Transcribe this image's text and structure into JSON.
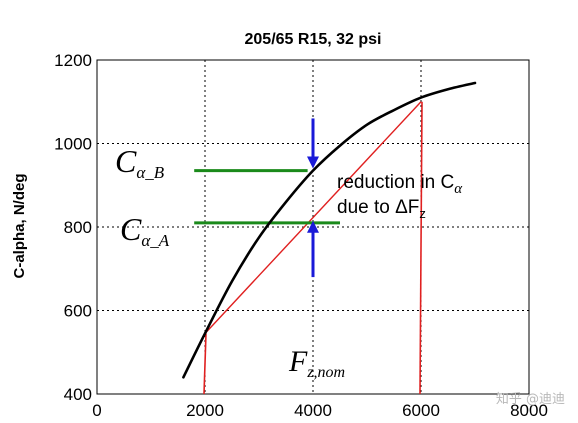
{
  "chart_data": {
    "type": "line",
    "title": "205/65 R15, 32 psi",
    "xlabel": "",
    "ylabel": "C-alpha, N/deg",
    "xlim": [
      0,
      8000
    ],
    "ylim": [
      400,
      1200
    ],
    "xticks": [
      0,
      2000,
      4000,
      6000,
      8000
    ],
    "yticks": [
      400,
      600,
      800,
      1000,
      1200
    ],
    "xtick_labels": [
      "0",
      "2000",
      "4000",
      "6000",
      "8000"
    ],
    "ytick_labels": [
      "400",
      "600",
      "800",
      "1000",
      "1200"
    ],
    "grid": true,
    "series": [
      {
        "color": "#000000",
        "x": [
          1600,
          2000,
          2500,
          3000,
          3500,
          4000,
          4500,
          5000,
          5500,
          6000,
          6500,
          7000
        ],
        "y": [
          440,
          545,
          670,
          775,
          860,
          935,
          995,
          1045,
          1080,
          1110,
          1130,
          1145
        ]
      }
    ],
    "chord": {
      "color": "#e02020",
      "x": [
        2000,
        6000
      ],
      "y": [
        545,
        1100
      ]
    },
    "verticals": {
      "color": "#e02020",
      "x": [
        2000,
        6000
      ]
    },
    "levels": [
      {
        "label_base": "C",
        "label_sub": "α_B",
        "y": 935,
        "x_from": 1800,
        "x_to": 3900,
        "color": "#1a8a1a"
      },
      {
        "label_base": "C",
        "label_sub": "α_A",
        "y": 810,
        "x_from": 1800,
        "x_to": 4500,
        "color": "#1a8a1a"
      }
    ],
    "arrows": {
      "color": "#1a1ad8",
      "x": 4000,
      "top_from": 1060,
      "top_to": 940,
      "bottom_from": 680,
      "bottom_to": 815
    },
    "annotations": {
      "reduction_line1": "reduction in C",
      "reduction_sub1": "α",
      "reduction_line2": "due to ΔF",
      "reduction_sub2": "z",
      "fz_base": "F",
      "fz_sub": "z,nom"
    }
  },
  "watermark": "知乎 @迪迪"
}
